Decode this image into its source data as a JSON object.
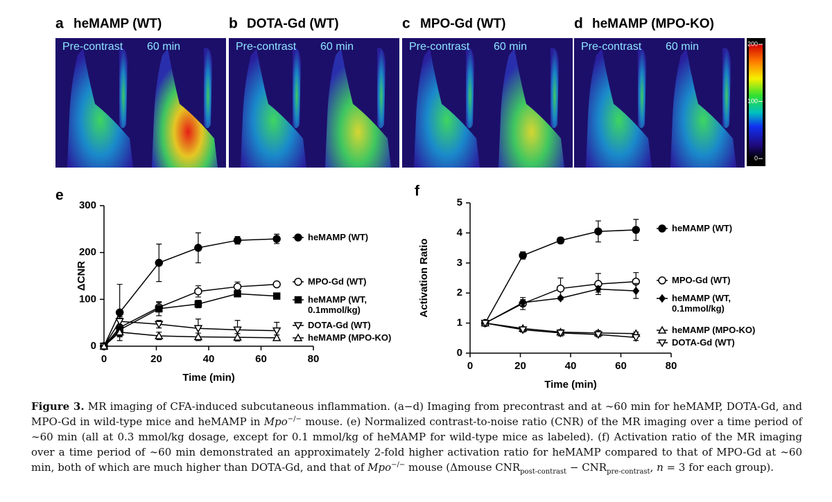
{
  "panels": [
    {
      "letter": "a",
      "title": "heMAMP (WT)",
      "labels": [
        "Pre-contrast",
        "60 min"
      ]
    },
    {
      "letter": "b",
      "title": "DOTA-Gd (WT)",
      "labels": [
        "Pre-contrast",
        "60 min"
      ]
    },
    {
      "letter": "c",
      "title": "MPO-Gd (WT)",
      "labels": [
        "Pre-contrast",
        "60 min"
      ]
    },
    {
      "letter": "d",
      "title": "heMAMP (MPO-KO)",
      "labels": [
        "Pre-contrast",
        "60 min"
      ]
    }
  ],
  "colorbar": {
    "ticks": [
      200,
      100,
      0
    ]
  },
  "chart_data": [
    {
      "type": "line",
      "panel": "e",
      "x_label": "Time (min)",
      "y_label": "ΔCNR",
      "xlim": [
        0,
        80
      ],
      "xticks": [
        0,
        20,
        40,
        60,
        80
      ],
      "ylim": [
        0,
        300
      ],
      "yticks": [
        0,
        100,
        200,
        300
      ],
      "x": [
        0,
        6,
        21,
        36,
        51,
        66
      ],
      "series": [
        {
          "name": "heMAMP (WT)",
          "color": "#000000",
          "marker": "circle",
          "filled": true,
          "values": [
            0,
            72,
            178,
            210,
            226,
            229
          ],
          "errors": [
            0,
            60,
            40,
            32,
            8,
            10
          ]
        },
        {
          "name": "MPO-Gd (WT)",
          "color": "#000000",
          "marker": "circle",
          "filled": false,
          "values": [
            0,
            40,
            83,
            117,
            127,
            132
          ],
          "errors": [
            0,
            20,
            10,
            12,
            10,
            5
          ]
        },
        {
          "name": "heMAMP (WT, 0.1mmol/kg)",
          "color": "#000000",
          "marker": "square",
          "filled": true,
          "values": [
            0,
            35,
            80,
            90,
            112,
            107
          ],
          "errors": [
            0,
            10,
            15,
            8,
            5,
            3
          ]
        },
        {
          "name": "DOTA-Gd (WT)",
          "color": "#000000",
          "marker": "triangle-down",
          "filled": false,
          "values": [
            0,
            53,
            47,
            38,
            35,
            33
          ],
          "errors": [
            0,
            10,
            8,
            20,
            20,
            18
          ]
        },
        {
          "name": "heMAMP (MPO-KO)",
          "color": "#000000",
          "marker": "triangle-up",
          "filled": false,
          "values": [
            0,
            30,
            22,
            20,
            19,
            18
          ],
          "errors": [
            0,
            8,
            8,
            8,
            8,
            6
          ]
        }
      ]
    },
    {
      "type": "line",
      "panel": "f",
      "x_label": "Time (min)",
      "y_label": "Activation Ratio",
      "xlim": [
        0,
        80
      ],
      "xticks": [
        0,
        20,
        40,
        60,
        80
      ],
      "ylim": [
        0,
        5
      ],
      "yticks": [
        0,
        1,
        2,
        3,
        4,
        5
      ],
      "x": [
        6,
        21,
        36,
        51,
        66
      ],
      "series": [
        {
          "name": "heMAMP (WT)",
          "color": "#000000",
          "marker": "circle",
          "filled": true,
          "values": [
            1,
            3.25,
            3.75,
            4.05,
            4.1
          ],
          "errors": [
            0,
            0.12,
            0.1,
            0.35,
            0.35
          ]
        },
        {
          "name": "MPO-Gd (WT)",
          "color": "#000000",
          "marker": "circle",
          "filled": false,
          "values": [
            1,
            1.65,
            2.15,
            2.3,
            2.38
          ],
          "errors": [
            0,
            0.2,
            0.35,
            0.35,
            0.3
          ]
        },
        {
          "name": "heMAMP (WT, 0.1mmol/kg)",
          "color": "#000000",
          "marker": "diamond",
          "filled": true,
          "values": [
            1,
            1.68,
            1.83,
            2.13,
            2.07
          ],
          "errors": [
            0,
            0.1,
            0.05,
            0.1,
            0.25
          ]
        },
        {
          "name": "heMAMP (MPO-KO)",
          "color": "#000000",
          "marker": "triangle-up",
          "filled": false,
          "values": [
            1,
            0.82,
            0.7,
            0.67,
            0.65
          ],
          "errors": [
            0,
            0.05,
            0.08,
            0.08,
            0.05
          ]
        },
        {
          "name": "DOTA-Gd (WT)",
          "color": "#000000",
          "marker": "triangle-down",
          "filled": false,
          "values": [
            1,
            0.78,
            0.67,
            0.62,
            0.52
          ],
          "errors": [
            0,
            0.08,
            0.1,
            0.08,
            0.1
          ]
        }
      ]
    }
  ],
  "caption": [
    "Figure 3.",
    " MR imaging of CFA-induced subcutaneous inflammation. (a−d) Imaging from precontrast and at ∼60 min for heMAMP, DOTA-Gd, and MPO-Gd in wild-type mice and heMAMP in ",
    "Mpo",
    "−/−",
    " mouse. (e) Normalized contrast-to-noise ratio (CNR) of the MR imaging over a time period of ∼60 min (all at 0.3 mmol/kg dosage, except for 0.1 mmol/kg of heMAMP for wild-type mice as labeled). (f) Activation ratio of the MR imaging over a time period of ∼60 min demonstrated an approximately 2-fold higher activation ratio for heMAMP compared to that of MPO-Gd at ∼60 min, both of which are much higher than DOTA-Gd, and that of ",
    "Mpo",
    "−/−",
    " mouse (Δmouse CNR",
    "post-contrast",
    " − CNR",
    "pre-contrast",
    ", ",
    "n",
    " = 3 for each group)."
  ]
}
